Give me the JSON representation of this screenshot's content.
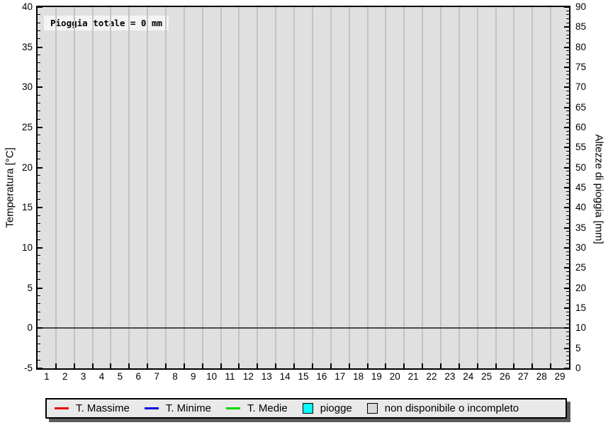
{
  "chart_data": {
    "type": "line",
    "title": "",
    "annotation": "Pioggia totale = 0 mm",
    "x": {
      "categories": [
        "1",
        "2",
        "3",
        "4",
        "5",
        "6",
        "7",
        "8",
        "9",
        "10",
        "11",
        "12",
        "13",
        "14",
        "15",
        "16",
        "17",
        "18",
        "19",
        "20",
        "21",
        "22",
        "23",
        "24",
        "25",
        "26",
        "27",
        "28",
        "29"
      ]
    },
    "left_axis": {
      "label": "Temperatura [°C]",
      "min": -5,
      "max": 40,
      "major_step": 5,
      "minor_step": 1,
      "tick_labels": [
        "40",
        "35",
        "30",
        "25",
        "20",
        "15",
        "10",
        "5",
        "0",
        "-5"
      ]
    },
    "right_axis": {
      "label": "Altezze di pioggia [mm]",
      "min": 0,
      "max": 90,
      "major_step": 5,
      "minor_step": 1,
      "tick_labels": [
        "90",
        "85",
        "80",
        "75",
        "70",
        "65",
        "60",
        "55",
        "50",
        "45",
        "40",
        "35",
        "30",
        "25",
        "20",
        "15",
        "10",
        "5",
        "0"
      ]
    },
    "grid": "vertical lines at day boundaries, no horizontal grid",
    "zero_line_temp": 0,
    "series": [
      {
        "name": "T. Massime",
        "type": "line",
        "color": "#e60000",
        "values": []
      },
      {
        "name": "T. Minime",
        "type": "line",
        "color": "#0000e0",
        "values": []
      },
      {
        "name": "T. Medie",
        "type": "line",
        "color": "#00d900",
        "values": []
      },
      {
        "name": "piogge",
        "type": "bar",
        "color": "#00ffff",
        "values": []
      }
    ],
    "legend_position": "bottom",
    "legend": [
      {
        "label": "T. Massime",
        "swatch": "line",
        "color": "#e60000"
      },
      {
        "label": "T. Minime",
        "swatch": "line",
        "color": "#0000e0"
      },
      {
        "label": "T. Medie",
        "swatch": "line",
        "color": "#00d900"
      },
      {
        "label": "piogge",
        "swatch": "box",
        "color": "#00ffff"
      },
      {
        "label": "non disponibile o incompleto",
        "swatch": "box",
        "color": "#d9d9d9"
      }
    ],
    "colors": {
      "plot_bg": "#e0e0e0",
      "grid": "#c3c3c3",
      "zero_line": "#4a4a4a",
      "axis_border": "#000000",
      "legend_bg": "#e9e9e9",
      "legend_shadow": "#5c5c5c",
      "annotation_bg": "#f4f4f4"
    }
  }
}
